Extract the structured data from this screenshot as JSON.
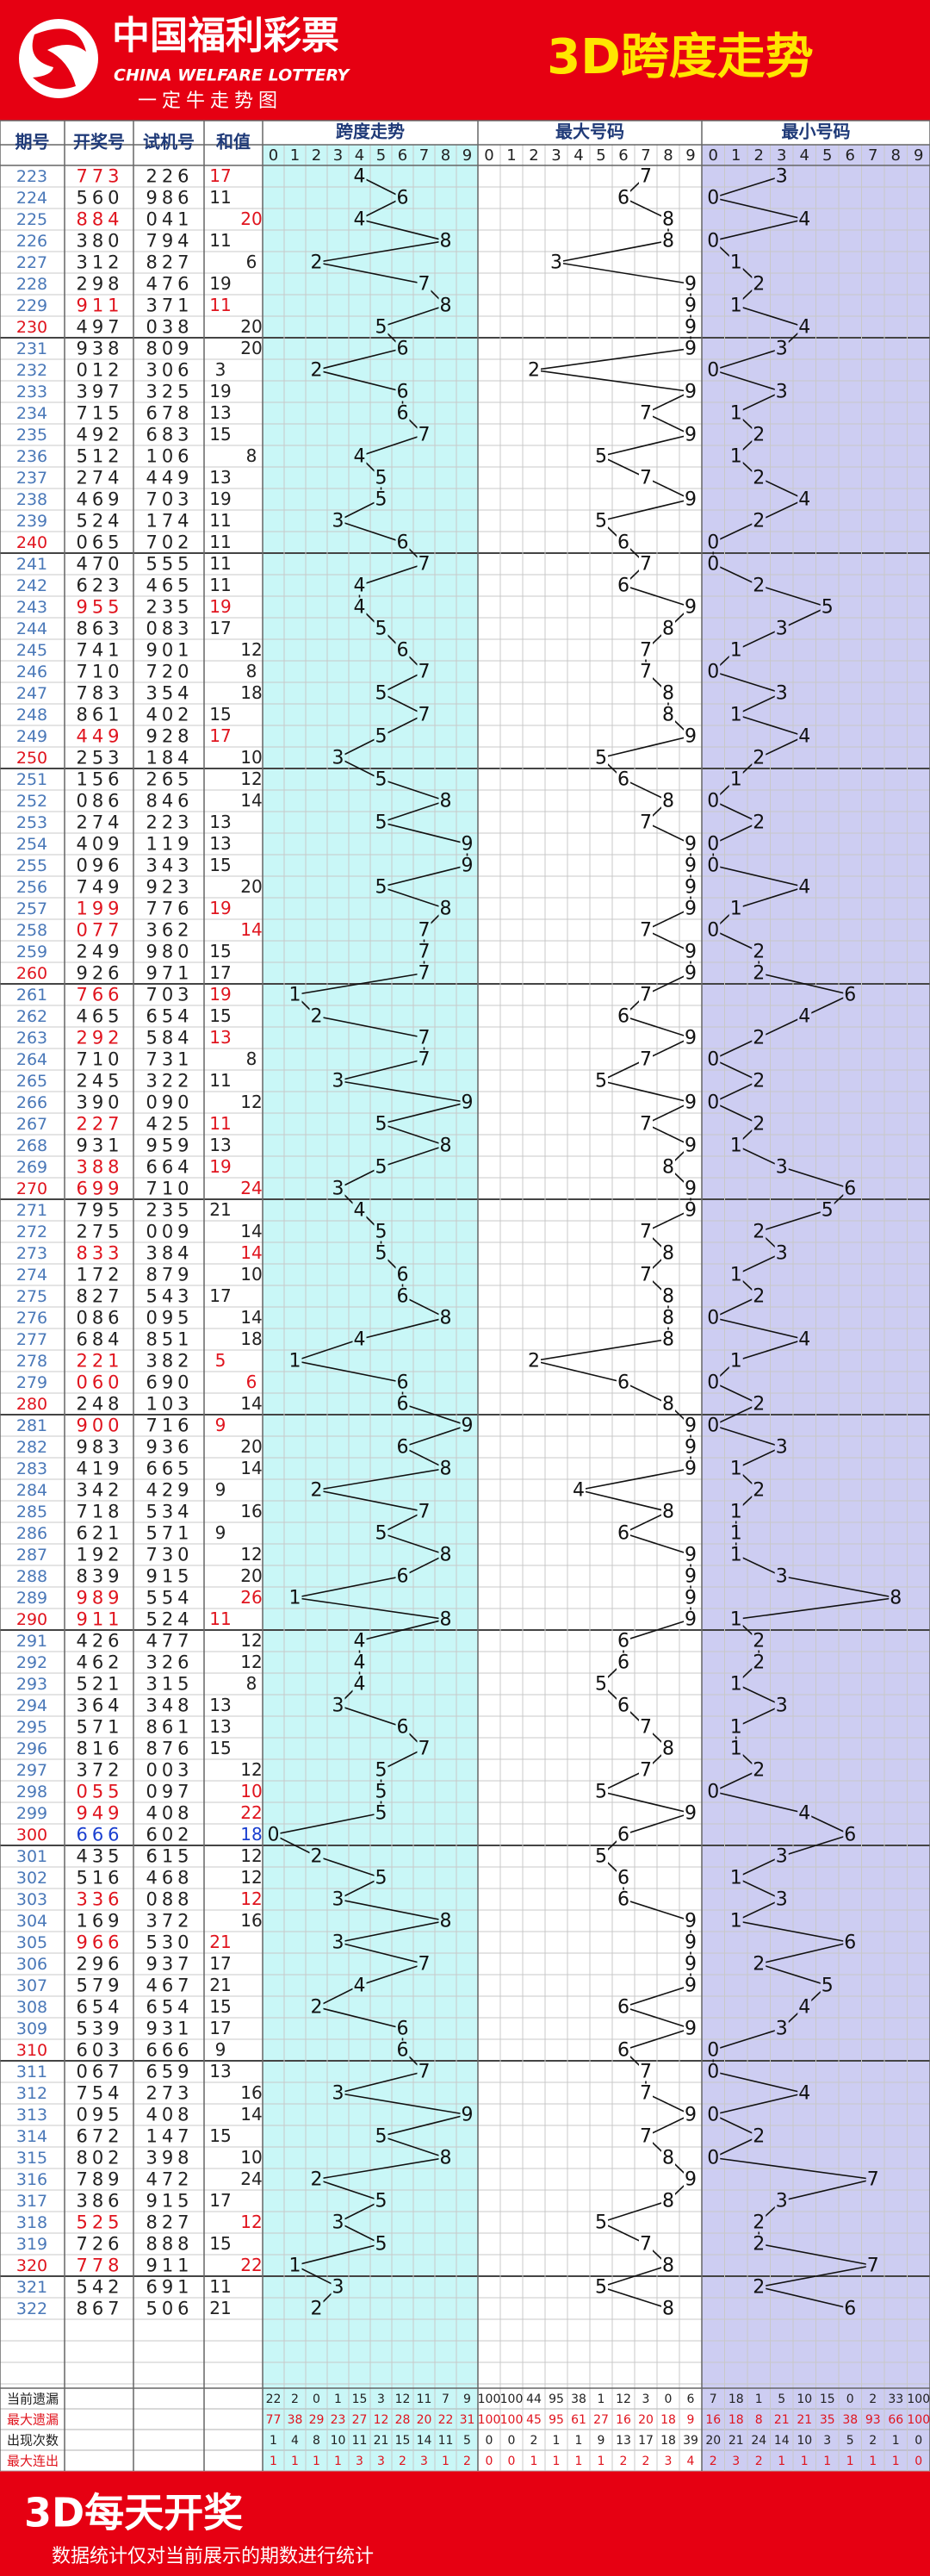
{
  "header": {
    "logo": "中国福利彩票",
    "logo_en": "CHINA WELFARE LOTTERY",
    "logo_sub": "一定牛走势图",
    "title": "3D跨度走势"
  },
  "table": {
    "columns": [
      "期号",
      "开奖号",
      "试机号",
      "和值",
      "跨度走势",
      "最大号码",
      "最小号码"
    ],
    "digits": [
      0,
      1,
      2,
      3,
      4,
      5,
      6,
      7,
      8,
      9
    ],
    "rows": [
      [
        223,
        "773",
        "226",
        17
      ],
      [
        224,
        "560",
        "986",
        11
      ],
      [
        225,
        "884",
        "041",
        20
      ],
      [
        226,
        "380",
        "794",
        11
      ],
      [
        227,
        "312",
        "827",
        6
      ],
      [
        228,
        "298",
        "476",
        19
      ],
      [
        229,
        "911",
        "371",
        11
      ],
      [
        230,
        "497",
        "038",
        20
      ],
      [
        231,
        "938",
        "809",
        20
      ],
      [
        232,
        "012",
        "306",
        3
      ],
      [
        233,
        "397",
        "325",
        19
      ],
      [
        234,
        "715",
        "678",
        13
      ],
      [
        235,
        "492",
        "683",
        15
      ],
      [
        236,
        "512",
        "106",
        8
      ],
      [
        237,
        "274",
        "449",
        13
      ],
      [
        238,
        "469",
        "703",
        19
      ],
      [
        239,
        "524",
        "174",
        11
      ],
      [
        240,
        "065",
        "702",
        11
      ],
      [
        241,
        "470",
        "555",
        11
      ],
      [
        242,
        "623",
        "465",
        11
      ],
      [
        243,
        "955",
        "235",
        19
      ],
      [
        244,
        "863",
        "083",
        17
      ],
      [
        245,
        "741",
        "901",
        12
      ],
      [
        246,
        "710",
        "720",
        8
      ],
      [
        247,
        "783",
        "354",
        18
      ],
      [
        248,
        "861",
        "402",
        15
      ],
      [
        249,
        "449",
        "928",
        17
      ],
      [
        250,
        "253",
        "184",
        10
      ],
      [
        251,
        "156",
        "265",
        12
      ],
      [
        252,
        "086",
        "846",
        14
      ],
      [
        253,
        "274",
        "223",
        13
      ],
      [
        254,
        "409",
        "119",
        13
      ],
      [
        255,
        "096",
        "343",
        15
      ],
      [
        256,
        "749",
        "923",
        20
      ],
      [
        257,
        "199",
        "776",
        19
      ],
      [
        258,
        "077",
        "362",
        14
      ],
      [
        259,
        "249",
        "980",
        15
      ],
      [
        260,
        "926",
        "971",
        17
      ],
      [
        261,
        "766",
        "703",
        19
      ],
      [
        262,
        "465",
        "654",
        15
      ],
      [
        263,
        "292",
        "584",
        13
      ],
      [
        264,
        "710",
        "731",
        8
      ],
      [
        265,
        "245",
        "322",
        11
      ],
      [
        266,
        "390",
        "090",
        12
      ],
      [
        267,
        "227",
        "425",
        11
      ],
      [
        268,
        "931",
        "959",
        13
      ],
      [
        269,
        "388",
        "664",
        19
      ],
      [
        270,
        "699",
        "710",
        24
      ],
      [
        271,
        "795",
        "235",
        21
      ],
      [
        272,
        "275",
        "009",
        14
      ],
      [
        273,
        "833",
        "384",
        14
      ],
      [
        274,
        "172",
        "879",
        10
      ],
      [
        275,
        "827",
        "543",
        17
      ],
      [
        276,
        "086",
        "095",
        14
      ],
      [
        277,
        "684",
        "851",
        18
      ],
      [
        278,
        "221",
        "382",
        5
      ],
      [
        279,
        "060",
        "690",
        6
      ],
      [
        280,
        "248",
        "103",
        14
      ],
      [
        281,
        "900",
        "716",
        9
      ],
      [
        282,
        "983",
        "936",
        20
      ],
      [
        283,
        "419",
        "665",
        14
      ],
      [
        284,
        "342",
        "429",
        9
      ],
      [
        285,
        "718",
        "534",
        16
      ],
      [
        286,
        "621",
        "571",
        9
      ],
      [
        287,
        "192",
        "730",
        12
      ],
      [
        288,
        "839",
        "915",
        20
      ],
      [
        289,
        "989",
        "554",
        26
      ],
      [
        290,
        "911",
        "524",
        11
      ],
      [
        291,
        "426",
        "477",
        12
      ],
      [
        292,
        "462",
        "326",
        12
      ],
      [
        293,
        "521",
        "315",
        8
      ],
      [
        294,
        "364",
        "348",
        13
      ],
      [
        295,
        "571",
        "861",
        13
      ],
      [
        296,
        "816",
        "876",
        15
      ],
      [
        297,
        "372",
        "003",
        12
      ],
      [
        298,
        "055",
        "097",
        10
      ],
      [
        299,
        "949",
        "408",
        22
      ],
      [
        300,
        "666",
        "602",
        18
      ],
      [
        301,
        "435",
        "615",
        12
      ],
      [
        302,
        "516",
        "468",
        12
      ],
      [
        303,
        "336",
        "088",
        12
      ],
      [
        304,
        "169",
        "372",
        16
      ],
      [
        305,
        "966",
        "530",
        21
      ],
      [
        306,
        "296",
        "937",
        17
      ],
      [
        307,
        "579",
        "467",
        21
      ],
      [
        308,
        "654",
        "654",
        15
      ],
      [
        309,
        "539",
        "931",
        17
      ],
      [
        310,
        "603",
        "666",
        9
      ],
      [
        311,
        "067",
        "659",
        13
      ],
      [
        312,
        "754",
        "273",
        16
      ],
      [
        313,
        "095",
        "408",
        14
      ],
      [
        314,
        "672",
        "147",
        15
      ],
      [
        315,
        "802",
        "398",
        10
      ],
      [
        316,
        "789",
        "472",
        24
      ],
      [
        317,
        "386",
        "915",
        17
      ],
      [
        318,
        "525",
        "827",
        12
      ],
      [
        319,
        "726",
        "888",
        15
      ],
      [
        320,
        "778",
        "911",
        22
      ],
      [
        321,
        "542",
        "691",
        11
      ],
      [
        322,
        "867",
        "506",
        21
      ]
    ],
    "span": [
      4,
      6,
      4,
      8,
      2,
      7,
      8,
      5,
      6,
      2,
      6,
      6,
      7,
      4,
      5,
      5,
      3,
      6,
      7,
      4,
      4,
      5,
      6,
      7,
      5,
      7,
      5,
      3,
      5,
      8,
      5,
      9,
      9,
      5,
      8,
      7,
      7,
      7,
      1,
      2,
      7,
      7,
      3,
      9,
      5,
      8,
      5,
      3,
      4,
      5,
      5,
      6,
      6,
      8,
      4,
      1,
      6,
      6,
      9,
      6,
      8,
      2,
      7,
      5,
      8,
      6,
      1,
      8,
      4,
      4,
      4,
      3,
      6,
      7,
      5,
      5,
      5,
      0,
      2,
      5,
      3,
      8,
      3,
      7,
      4,
      2,
      6,
      6,
      7,
      3,
      9,
      5,
      8,
      2,
      5,
      3,
      5,
      1,
      3,
      2
    ],
    "max": [
      7,
      6,
      8,
      8,
      3,
      9,
      9,
      9,
      9,
      2,
      9,
      7,
      9,
      5,
      7,
      9,
      5,
      6,
      7,
      6,
      9,
      8,
      7,
      7,
      8,
      8,
      9,
      5,
      6,
      8,
      7,
      9,
      9,
      9,
      9,
      7,
      9,
      9,
      7,
      6,
      9,
      7,
      5,
      9,
      7,
      9,
      8,
      9,
      9,
      7,
      8,
      7,
      8,
      8,
      8,
      2,
      6,
      8,
      9,
      9,
      9,
      4,
      8,
      6,
      9,
      9,
      9,
      9,
      6,
      6,
      5,
      6,
      7,
      8,
      7,
      5,
      9,
      6,
      5,
      6,
      6,
      9,
      9,
      9,
      9,
      6,
      9,
      6,
      7,
      7,
      9,
      7,
      8,
      9,
      8,
      5,
      7,
      8,
      5,
      8
    ],
    "min": [
      3,
      0,
      4,
      0,
      1,
      2,
      1,
      4,
      3,
      0,
      3,
      1,
      2,
      1,
      2,
      4,
      2,
      0,
      0,
      2,
      5,
      3,
      1,
      0,
      3,
      1,
      4,
      2,
      1,
      0,
      2,
      0,
      0,
      4,
      1,
      0,
      2,
      2,
      6,
      4,
      2,
      0,
      2,
      0,
      2,
      1,
      3,
      6,
      5,
      2,
      3,
      1,
      2,
      0,
      4,
      1,
      0,
      2,
      0,
      3,
      1,
      2,
      1,
      1,
      1,
      3,
      8,
      1,
      2,
      2,
      1,
      3,
      1,
      1,
      2,
      0,
      4,
      6,
      3,
      1,
      3,
      1,
      6,
      2,
      5,
      4,
      3,
      0,
      0,
      4,
      0,
      2,
      0,
      7,
      3,
      2,
      2,
      7,
      2,
      6
    ]
  },
  "stats": {
    "labels": [
      "当前遗漏",
      "最大遗漏",
      "出现次数",
      "最大连出"
    ],
    "rows": [
      [
        22,
        2,
        0,
        1,
        15,
        3,
        12,
        11,
        7,
        9,
        100,
        100,
        44,
        95,
        38,
        1,
        12,
        3,
        0,
        6,
        7,
        18,
        1,
        5,
        10,
        15,
        0,
        2,
        33,
        100
      ],
      [
        77,
        38,
        29,
        23,
        27,
        12,
        28,
        20,
        22,
        31,
        100,
        100,
        45,
        95,
        61,
        27,
        16,
        20,
        18,
        9,
        16,
        18,
        8,
        21,
        21,
        35,
        38,
        93,
        66,
        100
      ],
      [
        1,
        4,
        8,
        10,
        11,
        21,
        15,
        14,
        11,
        5,
        0,
        0,
        2,
        1,
        1,
        9,
        13,
        17,
        18,
        39,
        20,
        21,
        24,
        14,
        10,
        3,
        5,
        2,
        1,
        0
      ],
      [
        1,
        1,
        1,
        1,
        3,
        3,
        2,
        3,
        1,
        2,
        0,
        0,
        1,
        1,
        1,
        1,
        2,
        2,
        3,
        4,
        2,
        3,
        2,
        1,
        1,
        1,
        1,
        1,
        1,
        0
      ]
    ]
  },
  "footer": {
    "title": "3D每天开奖",
    "note": "数据统计仅对当前展示的期数进行统计"
  }
}
